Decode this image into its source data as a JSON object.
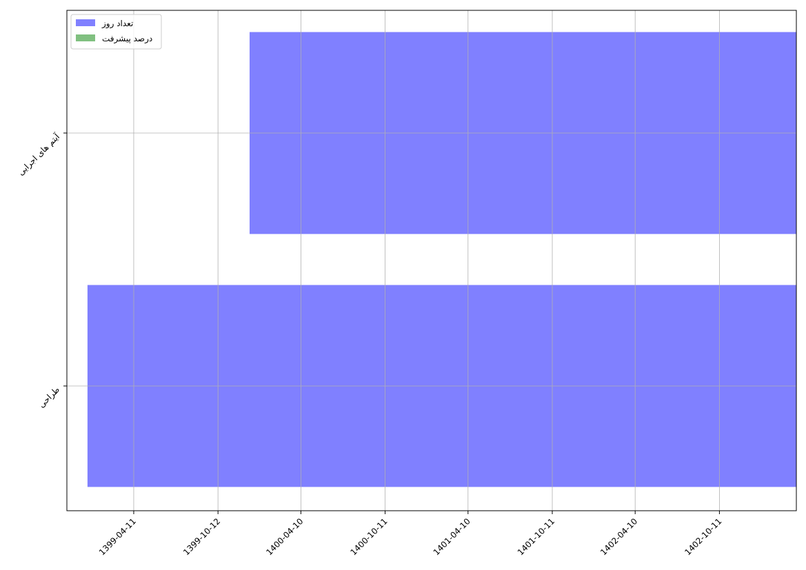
{
  "chart_data": {
    "type": "bar",
    "orientation": "horizontal",
    "categories": [
      "آیتم های اجرایی",
      "طراحی"
    ],
    "x_tick_labels": [
      "1399-04-11",
      "1399-10-12",
      "1400-04-10",
      "1400-10-11",
      "1401-04-10",
      "1401-10-11",
      "1402-04-10",
      "1402-10-11"
    ],
    "series": [
      {
        "name": "تعداد روز",
        "color": "#8080ff",
        "bars": [
          {
            "category": "آیتم های اجرایی",
            "start": "1399-12-21",
            "end": "1403-03-28"
          },
          {
            "category": "طراحی",
            "start": "1399-01-03",
            "end": "1403-03-28"
          }
        ]
      },
      {
        "name": "درصد پیشرفت",
        "color": "#80c080",
        "bars": []
      }
    ],
    "xlim": [
      "1398-11-17",
      "1403-03-28"
    ],
    "grid": true,
    "legend_position": "top-left"
  }
}
